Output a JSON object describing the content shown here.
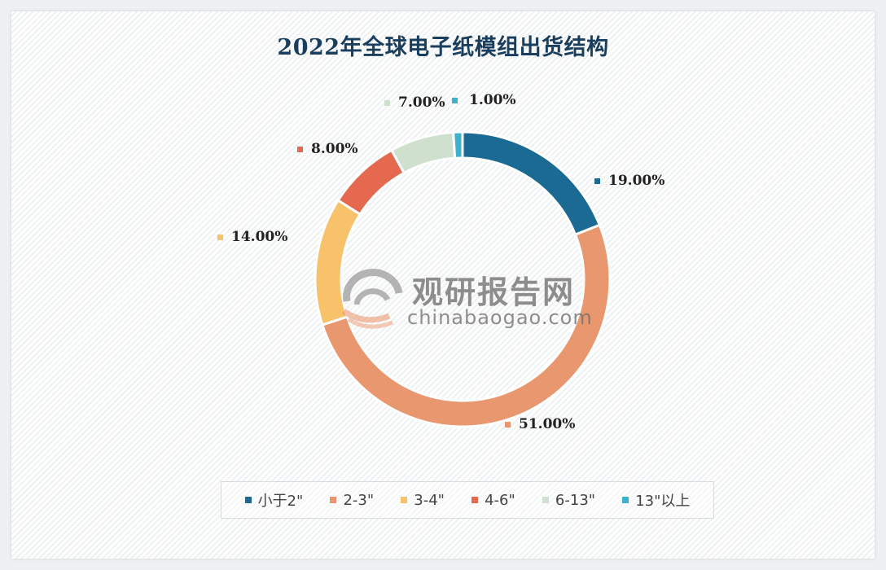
{
  "title": "2022年全球电子纸模组出货结构",
  "watermark": {
    "cn": "观研报告网",
    "en": "chinabaogao.com"
  },
  "legend": [
    {
      "label": "小于2\"",
      "color": "#1a6a93"
    },
    {
      "label": "2-3\"",
      "color": "#e9976f"
    },
    {
      "label": "3-4\"",
      "color": "#f7c26a"
    },
    {
      "label": "4-6\"",
      "color": "#e4694f"
    },
    {
      "label": "6-13\"",
      "color": "#cfe0cf"
    },
    {
      "label": "13\"以上",
      "color": "#3eb2cc"
    }
  ],
  "labels": {
    "s0": "19.00%",
    "s1": "51.00%",
    "s2": "14.00%",
    "s3": "8.00%",
    "s4": "7.00%",
    "s5": "1.00%"
  },
  "chart_data": {
    "type": "pie",
    "subtype": "donut",
    "title": "2022年全球电子纸模组出货结构",
    "categories": [
      "小于2\"",
      "2-3\"",
      "3-4\"",
      "4-6\"",
      "6-13\"",
      "13\"以上"
    ],
    "values": [
      19.0,
      51.0,
      14.0,
      8.0,
      7.0,
      1.0
    ],
    "unit": "%",
    "colors": [
      "#1a6a93",
      "#e9976f",
      "#f7c26a",
      "#e4694f",
      "#cfe0cf",
      "#3eb2cc"
    ],
    "data_labels": [
      "19.00%",
      "51.00%",
      "14.00%",
      "8.00%",
      "7.00%",
      "1.00%"
    ],
    "legend_position": "bottom",
    "start_angle": "12 o'clock, clockwise"
  }
}
